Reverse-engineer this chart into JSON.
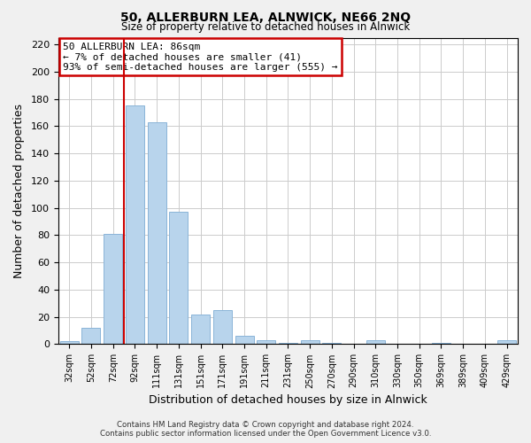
{
  "title": "50, ALLERBURN LEA, ALNWICK, NE66 2NQ",
  "subtitle": "Size of property relative to detached houses in Alnwick",
  "xlabel": "Distribution of detached houses by size in Alnwick",
  "ylabel": "Number of detached properties",
  "categories": [
    "32sqm",
    "52sqm",
    "72sqm",
    "92sqm",
    "111sqm",
    "131sqm",
    "151sqm",
    "171sqm",
    "191sqm",
    "211sqm",
    "231sqm",
    "250sqm",
    "270sqm",
    "290sqm",
    "310sqm",
    "330sqm",
    "350sqm",
    "369sqm",
    "389sqm",
    "409sqm",
    "429sqm"
  ],
  "values": [
    2,
    12,
    81,
    175,
    163,
    97,
    22,
    25,
    6,
    3,
    1,
    3,
    1,
    0,
    3,
    0,
    0,
    1,
    0,
    0,
    3
  ],
  "bar_color": "#b8d4ec",
  "bar_edge_color": "#8ab4d8",
  "vline_index": 3,
  "vline_color": "#cc0000",
  "ylim": [
    0,
    225
  ],
  "yticks": [
    0,
    20,
    40,
    60,
    80,
    100,
    120,
    140,
    160,
    180,
    200,
    220
  ],
  "annotation_line1": "50 ALLERBURN LEA: 86sqm",
  "annotation_line2": "← 7% of detached houses are smaller (41)",
  "annotation_line3": "93% of semi-detached houses are larger (555) →",
  "footer_line1": "Contains HM Land Registry data © Crown copyright and database right 2024.",
  "footer_line2": "Contains public sector information licensed under the Open Government Licence v3.0.",
  "background_color": "#f0f0f0",
  "plot_bg_color": "#ffffff",
  "grid_color": "#cccccc"
}
